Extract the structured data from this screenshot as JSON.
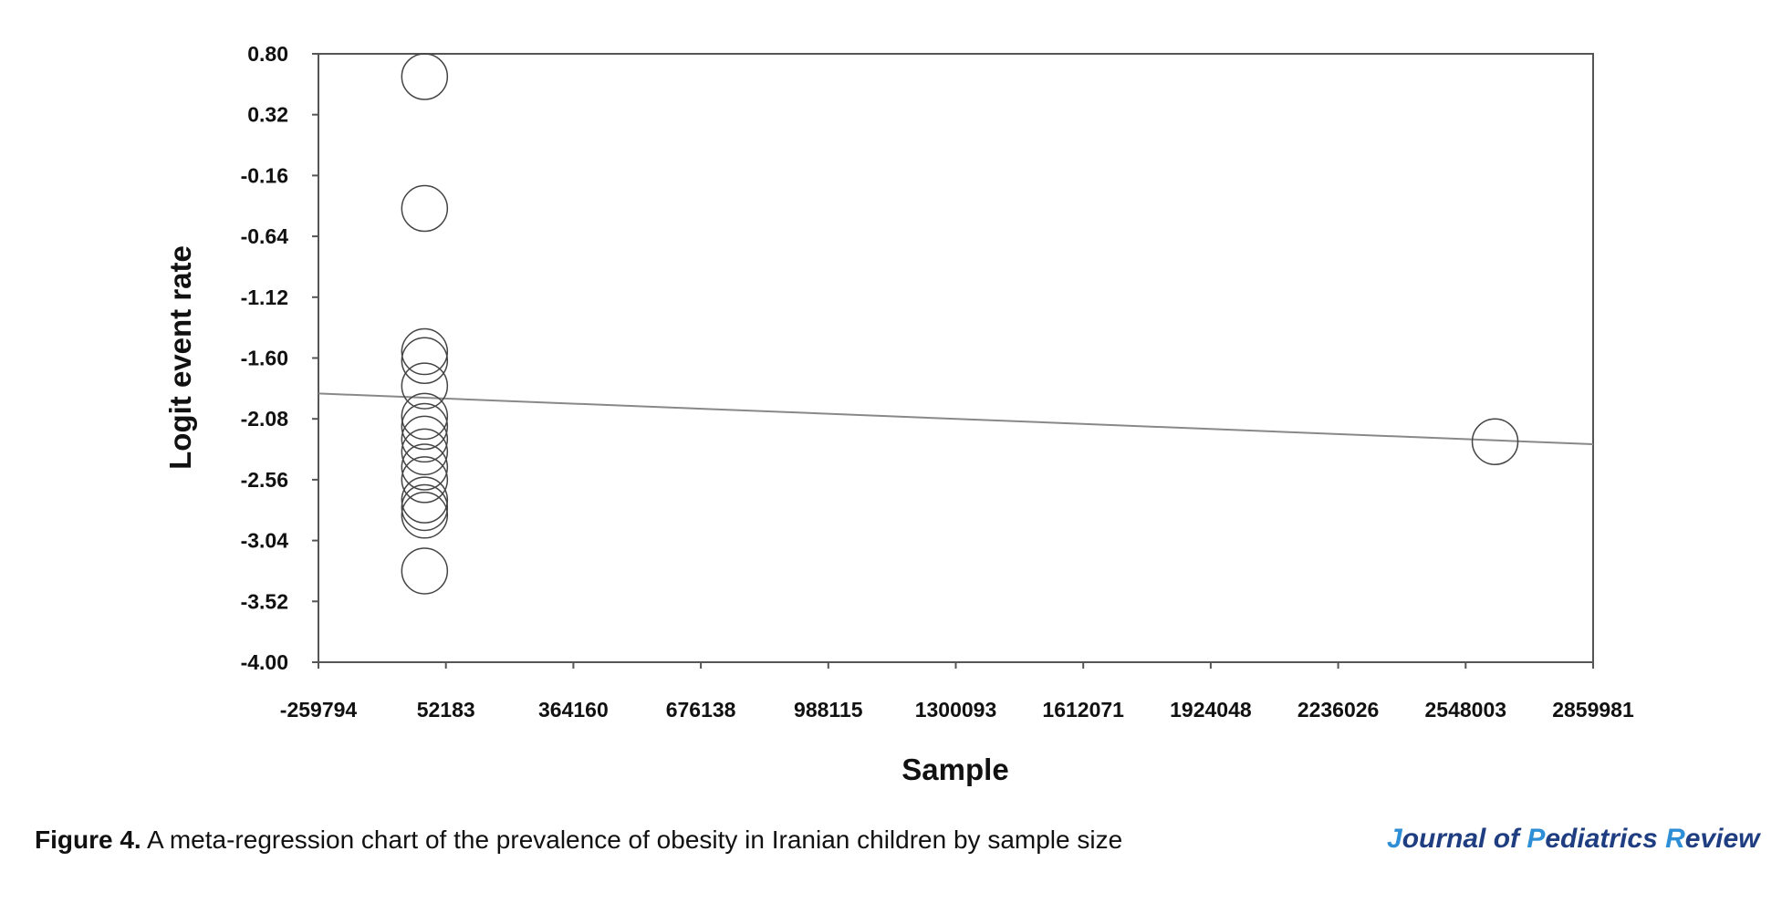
{
  "chart_data": {
    "type": "scatter",
    "xlabel": "Sample",
    "ylabel": "Logit event rate",
    "xlim": [
      -259794,
      2859981
    ],
    "ylim": [
      -4.0,
      0.8
    ],
    "x_ticks": [
      "-259794",
      "52183",
      "364160",
      "676138",
      "988115",
      "1300093",
      "1612071",
      "1924048",
      "2236026",
      "2548003",
      "2859981"
    ],
    "y_ticks": [
      "0.80",
      "0.32",
      "-0.16",
      "-0.64",
      "-1.12",
      "-1.60",
      "-2.08",
      "-2.56",
      "-3.04",
      "-3.52",
      "-4.00"
    ],
    "points": [
      {
        "x": 0,
        "y": 0.62
      },
      {
        "x": 0,
        "y": -0.42
      },
      {
        "x": 0,
        "y": -1.55
      },
      {
        "x": 0,
        "y": -1.62
      },
      {
        "x": 0,
        "y": -1.82
      },
      {
        "x": 0,
        "y": -2.06
      },
      {
        "x": 0,
        "y": -2.14
      },
      {
        "x": 0,
        "y": -2.24
      },
      {
        "x": 0,
        "y": -2.34
      },
      {
        "x": 0,
        "y": -2.46
      },
      {
        "x": 0,
        "y": -2.56
      },
      {
        "x": 0,
        "y": -2.72
      },
      {
        "x": 0,
        "y": -2.78
      },
      {
        "x": 0,
        "y": -2.84
      },
      {
        "x": 0,
        "y": -3.28
      },
      {
        "x": 2620000,
        "y": -2.26
      }
    ],
    "regression_line": {
      "x": [
        -259794,
        2859981
      ],
      "y": [
        -1.88,
        -2.28
      ]
    },
    "grid": false,
    "legend": "none"
  },
  "caption": {
    "label": "Figure 4.",
    "text": " A meta-regression chart of the prevalence of obesity in Iranian children by sample size"
  },
  "journal": {
    "j": "J",
    "ournal_of": "ournal of ",
    "p": "P",
    "ediatrics": "ediatrics ",
    "r": "R",
    "eview": "eview",
    "dark_color": "#1f3e82",
    "accent_color": "#2f8fd6"
  }
}
